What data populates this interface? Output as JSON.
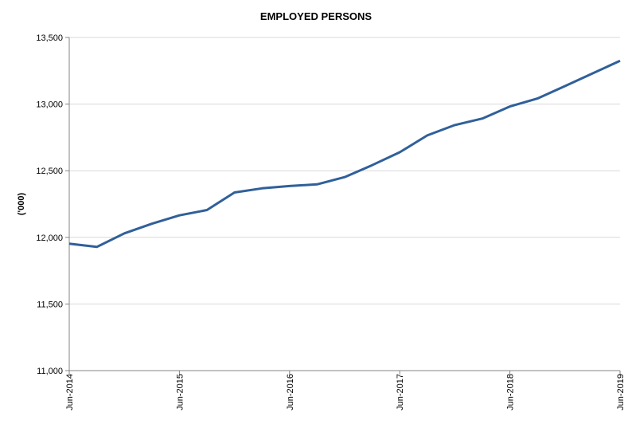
{
  "chart_data": {
    "type": "line",
    "title": "EMPLOYED PERSONS",
    "xlabel": "",
    "ylabel": "('000)",
    "ylim": [
      11000,
      13500
    ],
    "yticks": [
      "11,000",
      "11,500",
      "12,000",
      "12,500",
      "13,000",
      "13,500"
    ],
    "ytick_values": [
      11000,
      11500,
      12000,
      12500,
      13000,
      13500
    ],
    "xtick_labels": [
      "Jun-2014",
      "Jun-2015",
      "Jun-2016",
      "Jun-2017",
      "Jun-2018",
      "Jun-2019"
    ],
    "grid": "horizontal",
    "line_color": "#30609a",
    "x": [
      "Jun-2014",
      "Sep-2014",
      "Dec-2014",
      "Mar-2015",
      "Jun-2015",
      "Sep-2015",
      "Dec-2015",
      "Mar-2016",
      "Jun-2016",
      "Sep-2016",
      "Dec-2016",
      "Mar-2017",
      "Jun-2017",
      "Sep-2017",
      "Dec-2017",
      "Mar-2018",
      "Jun-2018",
      "Sep-2018",
      "Dec-2018",
      "Mar-2019",
      "Jun-2019"
    ],
    "values": [
      11952,
      11928,
      12030,
      12102,
      12165,
      12205,
      12337,
      12368,
      12385,
      12398,
      12452,
      12542,
      12639,
      12765,
      12843,
      12892,
      12982,
      13042,
      13135,
      13230,
      13325
    ]
  }
}
